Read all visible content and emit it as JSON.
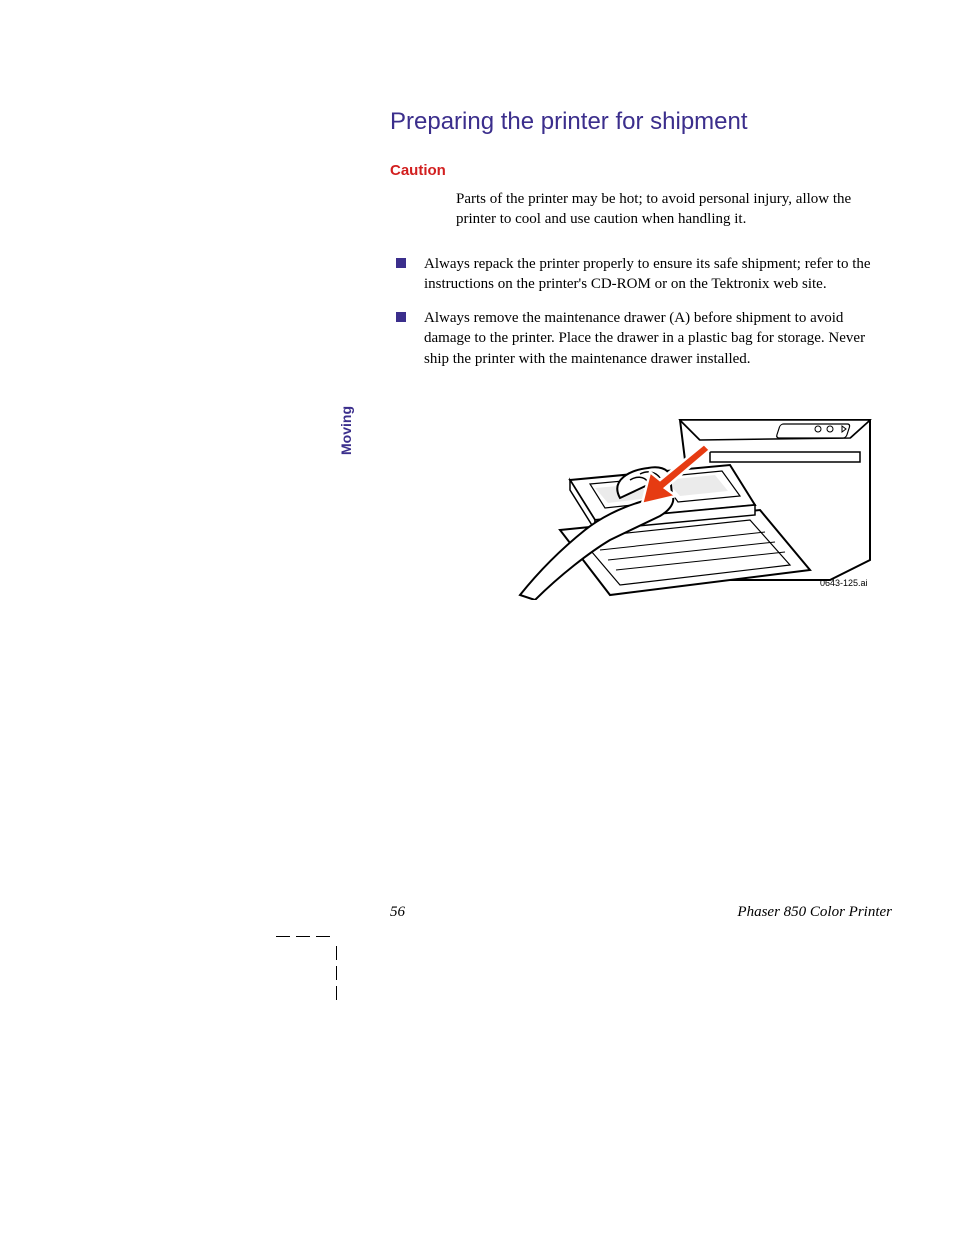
{
  "colors": {
    "heading": "#3b2e8c",
    "caution": "#d21f1f",
    "bullet": "#3b2e8c",
    "side_tab": "#3b2e8c",
    "body_text": "#000000",
    "arrow_fill": "#e63b12",
    "arrow_outline": "#ffffff",
    "figure_stroke": "#000000"
  },
  "typography": {
    "heading_fontsize": 24,
    "caution_fontsize": 15,
    "body_fontsize": 15,
    "sidetab_fontsize": 14,
    "figcaption_fontsize": 9,
    "footer_fontsize": 15
  },
  "heading": "Preparing the printer for shipment",
  "caution_label": "Caution",
  "caution_text": "Parts of the printer may be hot; to avoid personal injury, allow the printer to cool and use caution when handling it.",
  "bullets": [
    "Always repack the printer properly to ensure its safe shipment; refer to the instructions on the printer's CD-ROM or on the Tektronix web site.",
    "Always remove the maintenance drawer (A) before shipment to avoid damage to the printer.  Place the drawer in a plastic bag for storage.  Never ship the printer with the maintenance drawer installed."
  ],
  "side_tab": "Moving",
  "figure_caption": "0643-125.ai",
  "footer": {
    "page_number": "56",
    "doc_title": "Phaser 850 Color Printer"
  }
}
